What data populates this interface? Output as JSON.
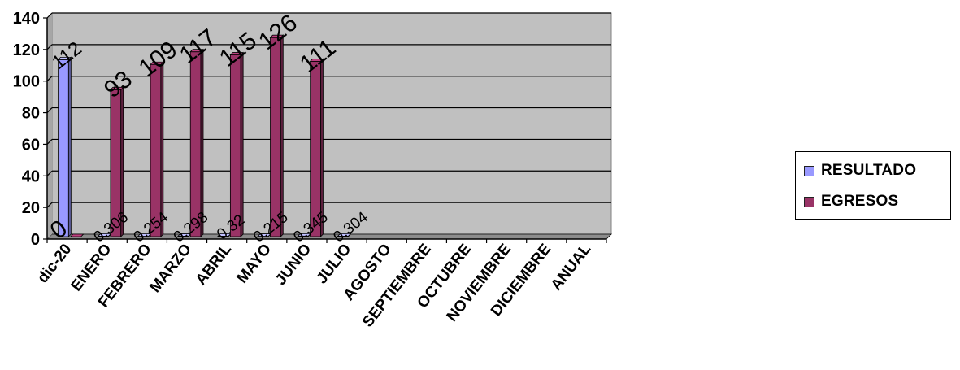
{
  "chart_data": {
    "type": "bar",
    "categories": [
      "dic-20",
      "ENERO",
      "FEBRERO",
      "MARZO",
      "ABRIL",
      "MAYO",
      "JUNIO",
      "JULIO",
      "AGOSTO",
      "SEPTIEMBRE",
      "OCTUBRE",
      "NOVIEMBRE",
      "DICIEMBRE",
      "ANUAL"
    ],
    "series": [
      {
        "name": "RESULTADO",
        "color": "#9999ff",
        "values": [
          112,
          0.306,
          0.254,
          0.298,
          0.32,
          0.215,
          0.345,
          0.304,
          null,
          null,
          null,
          null,
          null,
          null
        ],
        "labels": [
          "112",
          "0.306",
          "0.254",
          "0.298",
          "0.32",
          "0.215",
          "0.345",
          "0.304",
          "",
          "",
          "",
          "",
          "",
          ""
        ]
      },
      {
        "name": "EGRESOS",
        "color": "#993366",
        "values": [
          0,
          93,
          109,
          117,
          115,
          126,
          111,
          null,
          null,
          null,
          null,
          null,
          null,
          null
        ],
        "labels": [
          "0",
          "93",
          "109",
          "117",
          "115",
          "126",
          "111",
          "",
          "",
          "",
          "",
          "",
          "",
          ""
        ]
      }
    ],
    "yticks": [
      "0",
      "20",
      "40",
      "60",
      "80",
      "100",
      "120",
      "140"
    ],
    "ylim": [
      0,
      140
    ],
    "title": "",
    "xlabel": "",
    "ylabel": "",
    "grid": true,
    "plot_background": "#c0c0c0",
    "legend_position": "right"
  }
}
